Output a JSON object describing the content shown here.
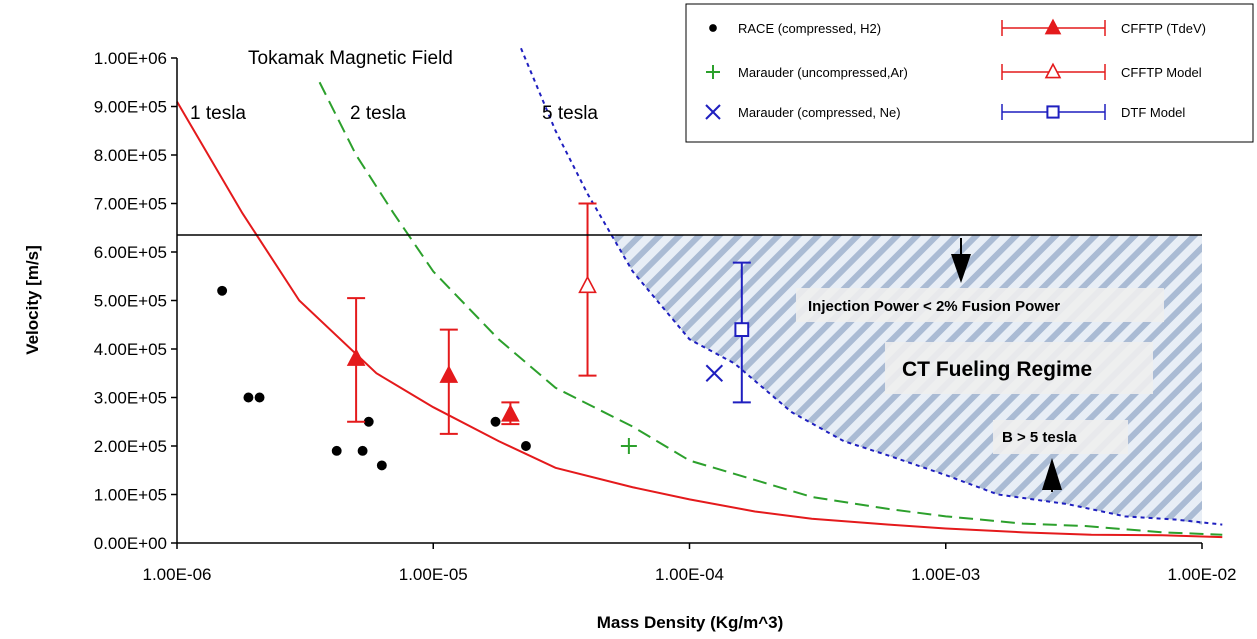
{
  "chart_data": {
    "type": "scatter",
    "title": "",
    "xlabel": "Mass Density (Kg/m^3)",
    "ylabel": "Velocity [m/s]",
    "x_scale": "log",
    "xlim": [
      1e-06,
      0.01
    ],
    "ylim": [
      0,
      1000000
    ],
    "x_tick_labels": [
      "1.00E-06",
      "1.00E-05",
      "1.00E-04",
      "1.00E-03",
      "1.00E-02"
    ],
    "y_tick_labels": [
      "0.00E+00",
      "1.00E+05",
      "2.00E+05",
      "3.00E+05",
      "4.00E+05",
      "5.00E+05",
      "6.00E+05",
      "7.00E+05",
      "8.00E+05",
      "9.00E+05",
      "1.00E+06"
    ],
    "grid": false,
    "legend_position": "top-right",
    "colors": {
      "red": "#e41a1c",
      "green": "#2ca02c",
      "blue": "#1f1fbf",
      "black": "#000000",
      "hatch_blue": "#aabbd4"
    },
    "group_label": "Tokamak Magnetic Field",
    "field_curves": [
      {
        "label": "1 tesla",
        "style": "solid",
        "color": "#e41a1c",
        "x": [
          1e-06,
          1.8e-06,
          3e-06,
          6e-06,
          1e-05,
          1.8e-05,
          3e-05,
          6e-05,
          0.0001,
          0.00018,
          0.0003,
          0.0006,
          0.001,
          0.002,
          0.0037,
          0.007,
          0.012
        ],
        "y": [
          910000,
          680000,
          500000,
          350000,
          280000,
          210000,
          155000,
          115000,
          90000,
          65000,
          50000,
          38000,
          30000,
          22000,
          17000,
          16000,
          12000
        ]
      },
      {
        "label": "2 tesla",
        "style": "dashed",
        "color": "#2ca02c",
        "x": [
          3.6e-06,
          5e-06,
          7e-06,
          1e-05,
          1.8e-05,
          3e-05,
          6e-05,
          0.0001,
          0.00018,
          0.0003,
          0.0006,
          0.001,
          0.002,
          0.0035,
          0.007,
          0.012
        ],
        "y": [
          950000,
          800000,
          680000,
          560000,
          420000,
          320000,
          240000,
          170000,
          130000,
          95000,
          70000,
          55000,
          40000,
          35000,
          22000,
          17000
        ]
      },
      {
        "label": "5 tesla",
        "style": "dotted",
        "color": "#1f1fbf",
        "x": [
          2.2e-05,
          3e-05,
          4e-05,
          6e-05,
          0.0001,
          0.00015,
          0.00025,
          0.0004,
          0.0006,
          0.001,
          0.0016,
          0.003,
          0.005,
          0.008,
          0.012
        ],
        "y": [
          1020000,
          850000,
          720000,
          560000,
          420000,
          370000,
          270000,
          210000,
          180000,
          140000,
          100000,
          80000,
          55000,
          48000,
          38000
        ]
      }
    ],
    "limit_line": {
      "y": 635000,
      "label": "Injection Power < 2% Fusion Power"
    },
    "region_label": "CT Fueling Regime",
    "b_label": "B > 5 tesla",
    "series": [
      {
        "name": "RACE (compressed, H2)",
        "marker": "circle",
        "color": "#000000",
        "points": [
          [
            1.5e-06,
            520000
          ],
          [
            1.9e-06,
            300000
          ],
          [
            2.1e-06,
            300000
          ],
          [
            4.2e-06,
            190000
          ],
          [
            5.3e-06,
            190000
          ],
          [
            5.6e-06,
            250000
          ],
          [
            6.3e-06,
            160000
          ],
          [
            1.75e-05,
            250000
          ],
          [
            2.3e-05,
            200000
          ]
        ]
      },
      {
        "name": "Marauder (uncompressed,Ar)",
        "marker": "plus",
        "color": "#2ca02c",
        "points": [
          [
            5.8e-05,
            200000
          ]
        ]
      },
      {
        "name": "Marauder (compressed, Ne)",
        "marker": "x",
        "color": "#1f1fbf",
        "points": [
          [
            0.000125,
            350000
          ]
        ]
      },
      {
        "name": "CFFTP (TdeV)",
        "marker": "filled-triangle",
        "color": "#e41a1c",
        "points": [
          [
            5e-06,
            380000,
            250000,
            505000
          ],
          [
            1.15e-05,
            345000,
            225000,
            440000
          ],
          [
            2e-05,
            265000,
            245000,
            290000
          ]
        ]
      },
      {
        "name": "CFFTP Model",
        "marker": "open-triangle",
        "color": "#e41a1c",
        "points": [
          [
            4e-05,
            530000,
            345000,
            700000
          ]
        ]
      },
      {
        "name": "DTF Model",
        "marker": "open-square",
        "color": "#1f1fbf",
        "points": [
          [
            0.00016,
            440000,
            290000,
            578000
          ]
        ]
      }
    ]
  }
}
